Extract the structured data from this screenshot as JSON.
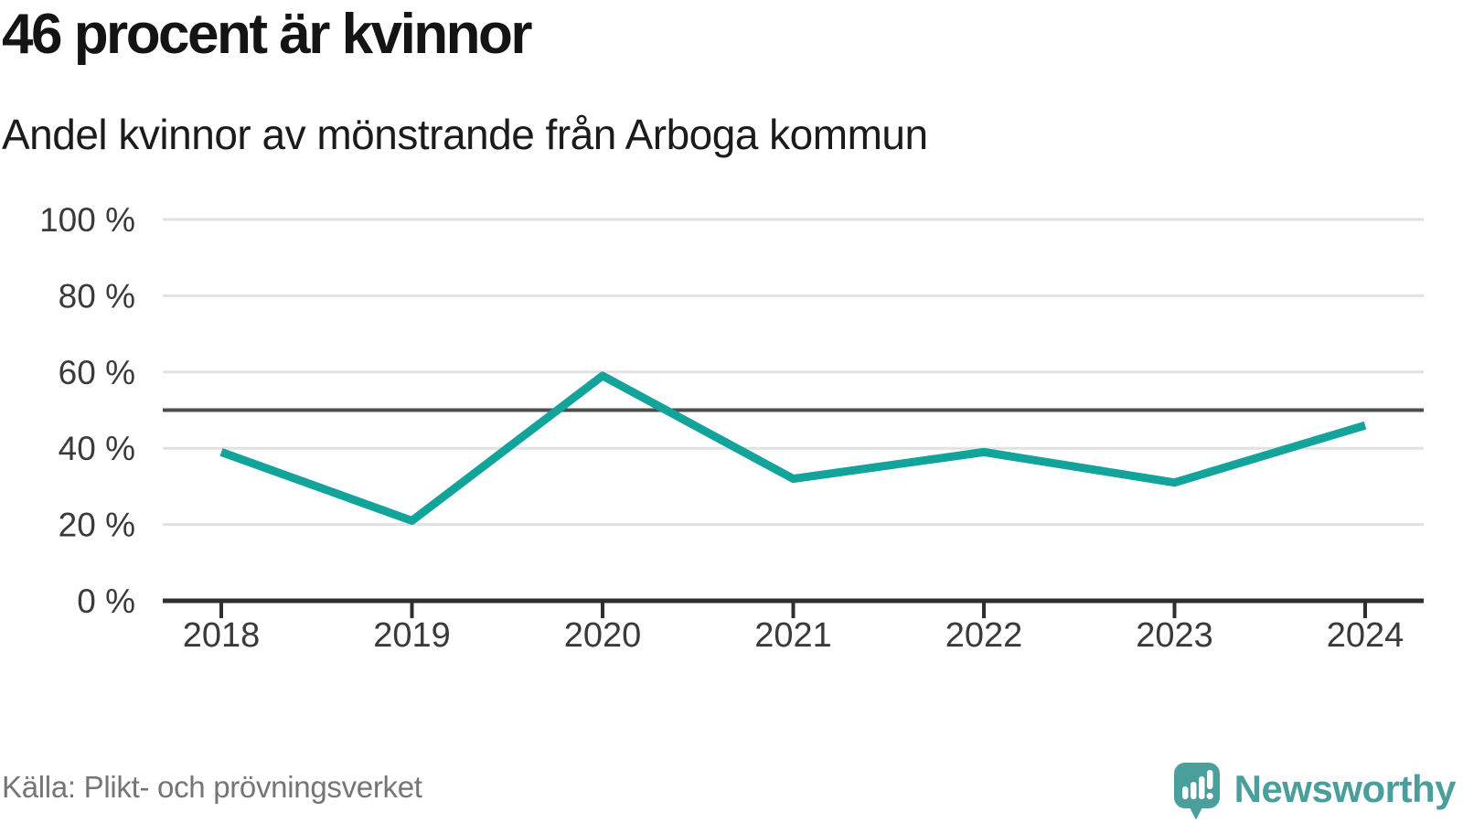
{
  "header": {
    "title": "46 procent är kvinnor",
    "subtitle": "Andel kvinnor av mönstrande från Arboga kommun"
  },
  "chart_data": {
    "type": "line",
    "x": [
      2018,
      2019,
      2020,
      2021,
      2022,
      2023,
      2024
    ],
    "series": [
      {
        "name": "Andel kvinnor av mönstrande",
        "values": [
          39,
          21,
          59,
          32,
          39,
          31,
          46
        ]
      }
    ],
    "unit": "%",
    "ylim": [
      0,
      100
    ],
    "yticks": [
      0,
      20,
      40,
      60,
      80,
      100
    ],
    "ytick_labels": [
      "0 %",
      "20 %",
      "40 %",
      "60 %",
      "80 %",
      "100 %"
    ],
    "xtick_labels": [
      "2018",
      "2019",
      "2020",
      "2021",
      "2022",
      "2023",
      "2024"
    ],
    "ref_line": 50,
    "grid": true,
    "legend": "none"
  },
  "footer": {
    "source": "Källa: Plikt- och prövningsverket",
    "brand": "Newsworthy"
  },
  "colors": {
    "line": "#12a39a",
    "grid": "#e2e2e2",
    "ref_line": "#4d4d4d",
    "axis": "#2f2f2f",
    "axis_text": "#3a3a3a",
    "brand": "#4a9e9b"
  }
}
